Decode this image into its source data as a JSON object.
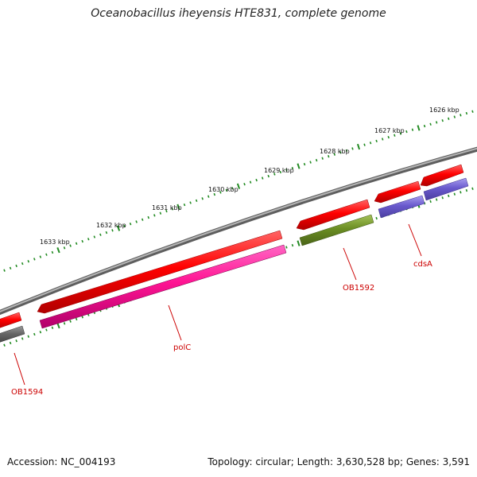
{
  "title": "Oceanobacillus iheyensis HTE831, complete genome",
  "footer": {
    "accession": "Accession: NC_004193",
    "summary": "Topology: circular; Length: 3,630,528 bp; Genes: 3,591"
  },
  "ticks": [
    "1626 kbp",
    "1627 kbp",
    "1628 kbp",
    "1629 kbp",
    "1630 kbp",
    "1631 kbp",
    "1632 kbp",
    "1633 kbp"
  ],
  "genes": [
    "cdsA",
    "OB1592",
    "polC",
    "OB1594"
  ],
  "colors": {
    "red": "#ff0000",
    "magenta": "#ff2299",
    "olive": "#6b8e23",
    "purple": "#6a5acd",
    "gray": "#666666",
    "tick_green": "#228b22",
    "backbone": "#808080"
  }
}
